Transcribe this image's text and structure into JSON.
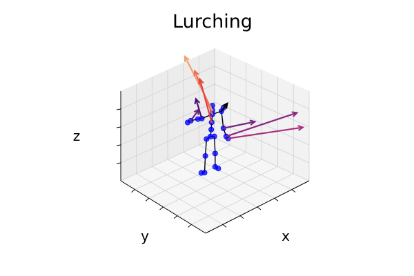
{
  "chart_data": {
    "type": "scatter",
    "projection": "3d",
    "title": "Lurching",
    "xlabel": "x",
    "ylabel": "y",
    "zlabel": "z",
    "tick_labels_shown": false,
    "grid": true,
    "skeleton": {
      "joints": [
        {
          "name": "head_top",
          "x": 0.05,
          "y": 0.0,
          "z": 1.72
        },
        {
          "name": "head",
          "x": 0.05,
          "y": 0.0,
          "z": 1.6
        },
        {
          "name": "neck",
          "x": 0.05,
          "y": 0.0,
          "z": 1.5
        },
        {
          "name": "spine_upper",
          "x": 0.03,
          "y": 0.0,
          "z": 1.3
        },
        {
          "name": "spine_mid",
          "x": 0.02,
          "y": 0.0,
          "z": 1.12
        },
        {
          "name": "pelvis",
          "x": 0.0,
          "y": 0.0,
          "z": 0.95
        },
        {
          "name": "l_shoulder",
          "x": -0.22,
          "y": 0.0,
          "z": 1.48
        },
        {
          "name": "l_elbow",
          "x": -0.32,
          "y": 0.0,
          "z": 1.5
        },
        {
          "name": "l_wrist",
          "x": -0.5,
          "y": 0.0,
          "z": 1.52
        },
        {
          "name": "l_hand",
          "x": -0.58,
          "y": 0.0,
          "z": 1.5
        },
        {
          "name": "r_shoulder",
          "x": 0.28,
          "y": 0.0,
          "z": 1.5
        },
        {
          "name": "r_clav",
          "x": 0.35,
          "y": 0.02,
          "z": 1.55
        },
        {
          "name": "r_elbow",
          "x": 0.33,
          "y": 0.0,
          "z": 1.05
        },
        {
          "name": "r_wrist",
          "x": 0.4,
          "y": 0.0,
          "z": 0.82
        },
        {
          "name": "r_hand",
          "x": 0.45,
          "y": 0.0,
          "z": 0.75
        },
        {
          "name": "l_hip",
          "x": -0.1,
          "y": 0.0,
          "z": 0.92
        },
        {
          "name": "l_knee",
          "x": -0.13,
          "y": 0.0,
          "z": 0.5
        },
        {
          "name": "l_ankle",
          "x": -0.15,
          "y": 0.0,
          "z": 0.08
        },
        {
          "name": "l_foot",
          "x": -0.15,
          "y": 0.08,
          "z": 0.02
        },
        {
          "name": "r_hip",
          "x": 0.1,
          "y": 0.0,
          "z": 0.92
        },
        {
          "name": "r_knee",
          "x": 0.12,
          "y": 0.0,
          "z": 0.48
        },
        {
          "name": "r_ankle",
          "x": 0.12,
          "y": 0.0,
          "z": 0.14
        },
        {
          "name": "r_foot",
          "x": 0.22,
          "y": 0.02,
          "z": 0.05
        }
      ],
      "bones": [
        [
          0,
          1
        ],
        [
          1,
          2
        ],
        [
          2,
          3
        ],
        [
          3,
          4
        ],
        [
          4,
          5
        ],
        [
          2,
          6
        ],
        [
          6,
          7
        ],
        [
          7,
          8
        ],
        [
          8,
          9
        ],
        [
          2,
          10
        ],
        [
          10,
          11
        ],
        [
          10,
          12
        ],
        [
          12,
          13
        ],
        [
          13,
          14
        ],
        [
          5,
          15
        ],
        [
          15,
          16
        ],
        [
          16,
          17
        ],
        [
          17,
          18
        ],
        [
          5,
          19
        ],
        [
          19,
          20
        ],
        [
          20,
          21
        ],
        [
          21,
          22
        ]
      ],
      "joint_color": "#0000ff",
      "bone_color": "#000000"
    },
    "vectors": [
      {
        "joint": 1,
        "dx": -0.7,
        "dy": 0.0,
        "dz": 1.6,
        "color": "#f4a070"
      },
      {
        "joint": 2,
        "dx": -0.45,
        "dy": 0.0,
        "dz": 1.25,
        "color": "#f06e5a"
      },
      {
        "joint": 3,
        "dx": -0.3,
        "dy": 0.0,
        "dz": 1.2,
        "color": "#e0443e"
      },
      {
        "joint": 6,
        "dx": -0.15,
        "dy": 0.0,
        "dz": 0.55,
        "color": "#4b0f78"
      },
      {
        "joint": 8,
        "dx": 0.0,
        "dy": -0.2,
        "dz": 0.42,
        "color": "#6a1a7e"
      },
      {
        "joint": 10,
        "dx": 0.15,
        "dy": 0.0,
        "dz": 0.15,
        "color": "#000004"
      },
      {
        "joint": 13,
        "dx": 1.8,
        "dy": 0.0,
        "dz": 0.0,
        "color": "#8c2882"
      },
      {
        "joint": 14,
        "dx": 1.9,
        "dy": 0.0,
        "dz": -0.35,
        "color": "#a5307e"
      },
      {
        "joint": 12,
        "dx": 0.8,
        "dy": 0.0,
        "dz": -0.1,
        "color": "#7a2480"
      }
    ],
    "colors": {
      "pane_left": "#ececec",
      "pane_right": "#f2f2f2",
      "pane_floor": "#f6f6f6",
      "grid": "#d0d0d0"
    }
  }
}
